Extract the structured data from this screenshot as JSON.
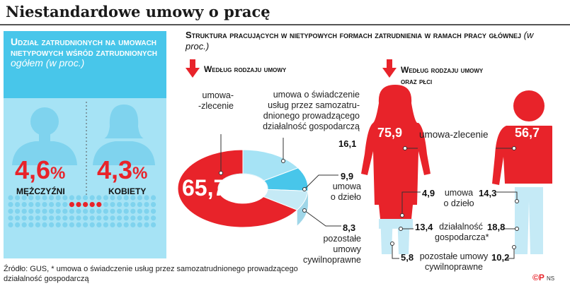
{
  "title": "Niestandardowe umowy o pracę",
  "left_panel": {
    "heading": "Udział zatrudnionych na umowach nietypowych wśród zatrudnionych",
    "heading_italic": "ogółem (w proc.)",
    "men": {
      "value": "4,6",
      "unit": "%",
      "label": "MĘŻCZYŹNI"
    },
    "women": {
      "value": "4,3",
      "unit": "%",
      "label": "KOBIETY"
    },
    "bg_color": "#48c6ea"
  },
  "main_heading": "Struktura pracujących w nietypowych formach zatrudnienia w ramach pracy głównej",
  "main_heading_italic": "(w proc.)",
  "sub_left": "Według rodzaju umowy",
  "sub_right_1": "Według rodzaju umowy",
  "sub_right_2": "oraz płci",
  "pie_labels": {
    "zlecenie_1": "umowa-",
    "zlecenie_2": "-zlecenie",
    "swiadczenie_1": "umowa o świadczenie",
    "swiadczenie_2": "usług przez samozatru-",
    "swiadczenie_3": "dnionego prowadzącego",
    "swiadczenie_4": "działalność gospodarczą",
    "dzielo_1": "umowa",
    "dzielo_2": "o dzieło",
    "pozostale_1": "pozostałe",
    "pozostale_2": "umowy cywilnoprawne",
    "v_zlecenie": "65,7",
    "v_swiadczenie": "16,1",
    "v_dzielo": "9,9",
    "v_pozostale": "8,3"
  },
  "gender_labels": {
    "zlecenie": "umowa-zlecenie",
    "dzielo_1": "umowa",
    "dzielo_2": "o dzieło",
    "dzialalnosc_1": "działalność",
    "dzialalnosc_2": "gospodarcza*",
    "pozostale_1": "pozostałe umowy",
    "pozostale_2": "cywilnoprawne",
    "w_zlecenie": "75,9",
    "w_dzielo": "4,9",
    "w_dzialalnosc": "13,4",
    "w_pozostale": "5,8",
    "m_zlecenie": "56,7",
    "m_dzielo": "14,3",
    "m_dzialalnosc": "18,8",
    "m_pozostale": "10,2"
  },
  "source": "Źródło: GUS, * umowa o świadczenie usług przez samozatrudnionego prowadzącego działalność gospodarczą",
  "credit": "©P",
  "credit_small": "NS",
  "colors": {
    "red": "#e8232a",
    "cyan": "#48c6ea",
    "light_cyan": "#a6e3f5",
    "figure_light": "#c5eaf6"
  },
  "chart_data": [
    {
      "type": "pie",
      "title": "Według rodzaju umowy",
      "categories": [
        "umowa-zlecenie",
        "umowa o świadczenie usług przez samozatrudnionego prowadzącego działalność gospodarczą",
        "umowa o dzieło",
        "pozostałe umowy cywilnoprawne"
      ],
      "values": [
        65.7,
        16.1,
        9.9,
        8.3
      ]
    },
    {
      "type": "bar",
      "title": "Według rodzaju umowy oraz płci",
      "categories": [
        "umowa-zlecenie",
        "umowa o dzieło",
        "działalność gospodarcza*",
        "pozostałe umowy cywilnoprawne"
      ],
      "series": [
        {
          "name": "kobiety",
          "values": [
            75.9,
            4.9,
            13.4,
            5.8
          ]
        },
        {
          "name": "mężczyźni",
          "values": [
            56.7,
            14.3,
            18.8,
            10.2
          ]
        }
      ]
    },
    {
      "type": "bar",
      "title": "Udział zatrudnionych na umowach nietypowych wśród zatrudnionych ogółem",
      "categories": [
        "MĘŻCZYŹNI",
        "KOBIETY"
      ],
      "values": [
        4.6,
        4.3
      ]
    }
  ]
}
